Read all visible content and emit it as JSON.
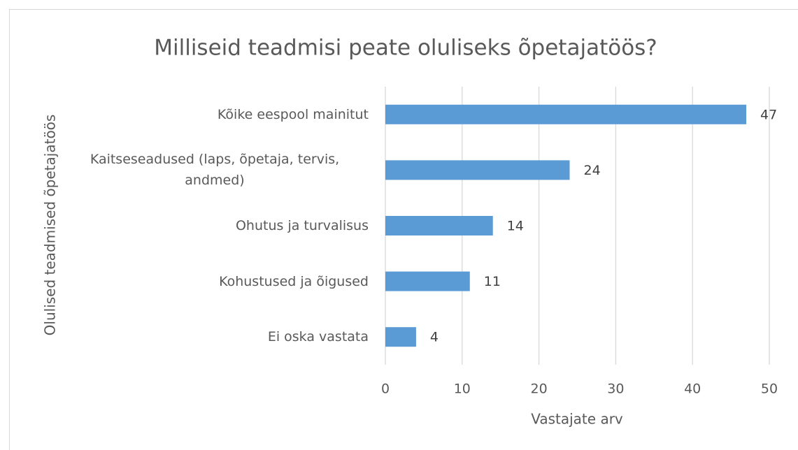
{
  "chart_data": {
    "type": "bar",
    "orientation": "horizontal",
    "title": "Milliseid teadmisi peate oluliseks õpetajatöös?",
    "x_label": "Vastajate arv",
    "y_label": "Olulised teadmised õpetajatöös",
    "categories": [
      "Kõike eespool mainitut",
      "Kaitseseadused (laps, õpetaja, tervis, andmed)",
      "Ohutus ja turvalisus",
      "Kohustused ja õigused",
      "Ei oska vastata"
    ],
    "values": [
      47,
      24,
      14,
      11,
      4
    ],
    "color": "#5b9bd5",
    "xlim": [
      0,
      50
    ],
    "xticks": [
      0,
      10,
      20,
      30,
      40,
      50
    ],
    "grid": true
  }
}
